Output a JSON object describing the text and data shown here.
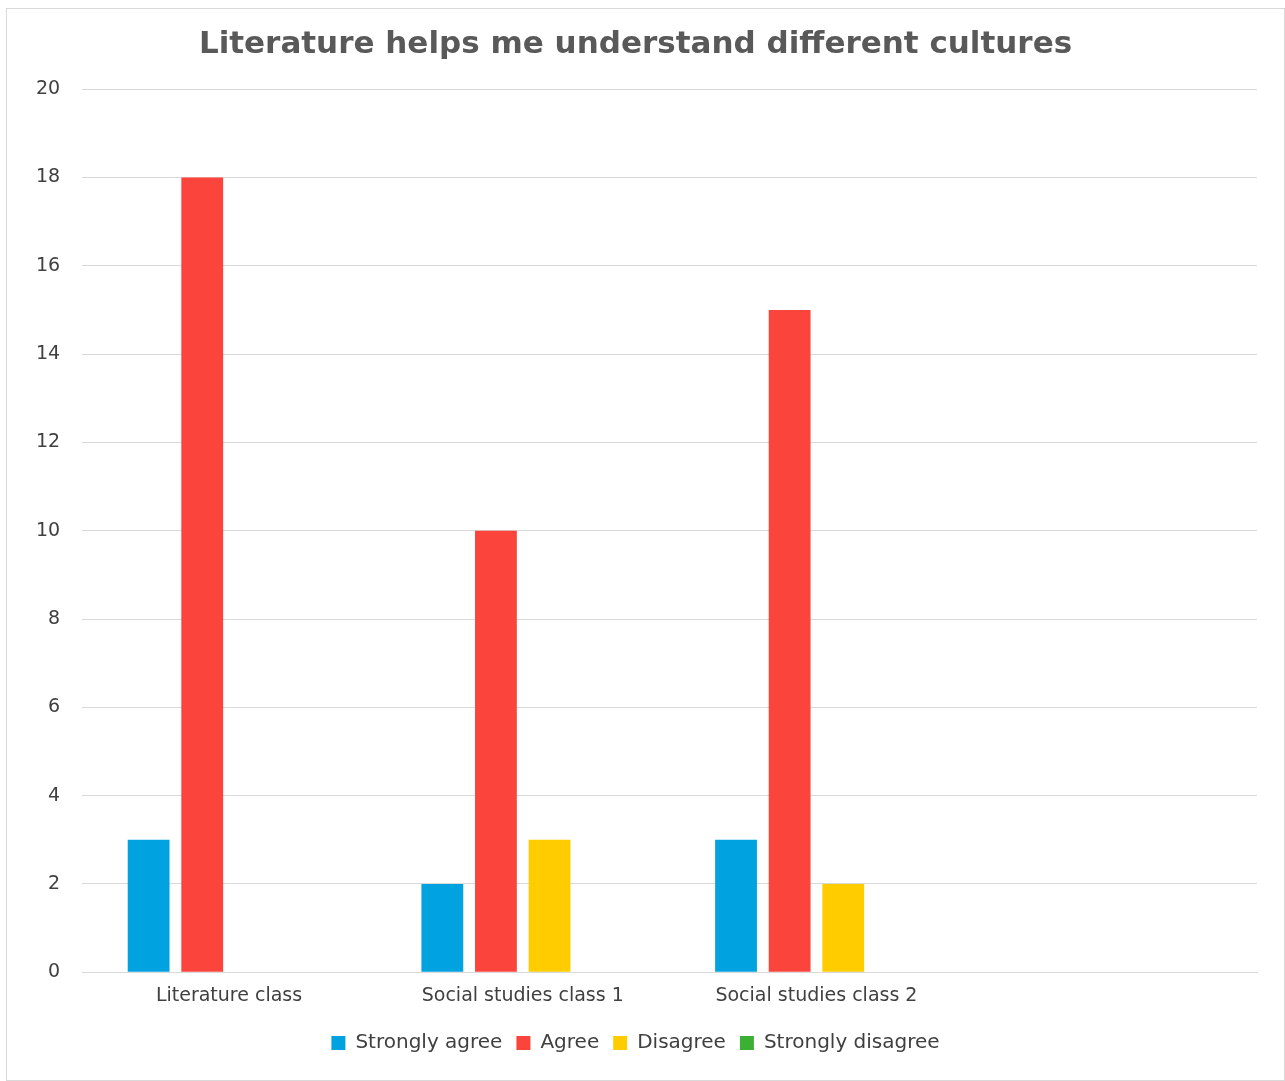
{
  "chart_data": {
    "type": "bar",
    "title": "Literature helps me understand different cultures",
    "categories": [
      "Literature class",
      "Social studies class 1",
      "Social studies class 2",
      null
    ],
    "series": [
      {
        "name": "Strongly agree",
        "color": "#00a2e0",
        "values": [
          3,
          2,
          3,
          null
        ]
      },
      {
        "name": "Agree",
        "color": "#fb443b",
        "values": [
          18,
          10,
          15,
          null
        ]
      },
      {
        "name": "Disagree",
        "color": "#ffcc00",
        "values": [
          0,
          3,
          2,
          null
        ]
      },
      {
        "name": "Strongly disagree",
        "color": "#3cb034",
        "values": [
          0,
          0,
          0,
          null
        ]
      }
    ],
    "ylim": [
      0,
      20
    ],
    "yticks": [
      0,
      2,
      4,
      6,
      8,
      10,
      12,
      14,
      16,
      18,
      20
    ],
    "grid": "y",
    "legend": "bottom"
  }
}
